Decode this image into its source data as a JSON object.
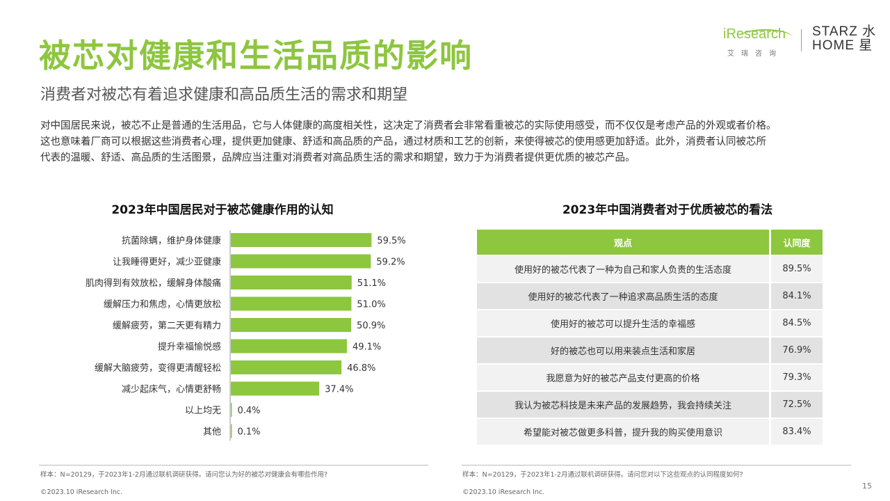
{
  "header": {
    "title": "被芯对健康和生活品质的影响",
    "subtitle": "消费者对被芯有着追求健康和高品质生活的需求和期望",
    "intro_lines": [
      "对中国居民来说，被芯不止是普通的生活用品，它与人体健康的高度相关性，这决定了消费者会非常看重被芯的实际使用感受，而不仅仅是考虑产品的外观或者价格。",
      "这也意味着厂商可以根据这些消费者心理，提供更加健康、舒适和高品质的产品，通过材质和工艺的创新，来使得被芯的使用感更加舒适。此外，消费者认同被芯所",
      "代表的温暖、舒适、高品质的生活图景，品牌应当注重对消费者对高品质生活的需求和期望，致力于为消费者提供更优质的被芯产品。"
    ]
  },
  "logos": {
    "iresearch_word": "iResearch",
    "iresearch_cn": "艾瑞咨询",
    "starz_line1": "STARZ 水",
    "starz_line2": "HOME 星"
  },
  "colors": {
    "accent": "#8dc63f"
  },
  "chart_data": [
    {
      "type": "bar",
      "orientation": "horizontal",
      "title": "2023年中国居民对于被芯健康作用的认知",
      "categories": [
        "抗菌除螨，维护身体健康",
        "让我睡得更好，减少亚健康",
        "肌肉得到有效放松，缓解身体酸痛",
        "缓解压力和焦虑，心情更放松",
        "缓解疲劳，第二天更有精力",
        "提升幸福愉悦感",
        "缓解大脑疲劳，变得更清醒轻松",
        "减少起床气，心情更舒畅",
        "以上均无",
        "其他"
      ],
      "values": [
        59.5,
        59.2,
        51.1,
        51.0,
        50.9,
        49.1,
        46.8,
        37.4,
        0.4,
        0.1
      ],
      "value_labels": [
        "59.5%",
        "59.2%",
        "51.1%",
        "51.0%",
        "50.9%",
        "49.1%",
        "46.8%",
        "37.4%",
        "0.4%",
        "0.1%"
      ],
      "xlim": [
        0,
        100
      ],
      "grid": false,
      "color": "#8dc63f"
    },
    {
      "type": "table",
      "title": "2023年中国消费者对于优质被芯的看法",
      "columns": [
        "观点",
        "认同度"
      ],
      "rows": [
        [
          "使用好的被芯代表了一种为自己和家人负责的生活态度",
          "89.5%"
        ],
        [
          "使用好的被芯代表了一种追求高品质生活的态度",
          "84.1%"
        ],
        [
          "使用好的被芯可以提升生活的幸福感",
          "84.5%"
        ],
        [
          "好的被芯也可以用来装点生活和家居",
          "76.9%"
        ],
        [
          "我愿意为好的被芯产品支付更高的价格",
          "79.3%"
        ],
        [
          "我认为被芯科技是未来产品的发展趋势，我会持续关注",
          "72.5%"
        ],
        [
          "希望能对被芯做更多科普，提升我的购买使用意识",
          "83.4%"
        ]
      ]
    }
  ],
  "footer": {
    "note_left": "样本：N=20129，于2023年1-2月通过联机调研获得。请问您认为好的被芯对健康会有哪些作用?",
    "note_right": "样本：N=20129，于2023年1-2月通过联机调研获得。请问您对以下这些观点的认同程度如何?",
    "copyright_left": "©2023.10 iResearch Inc.",
    "copyright_right": "©2023.10 iResearch Inc.",
    "page_number": "15"
  }
}
